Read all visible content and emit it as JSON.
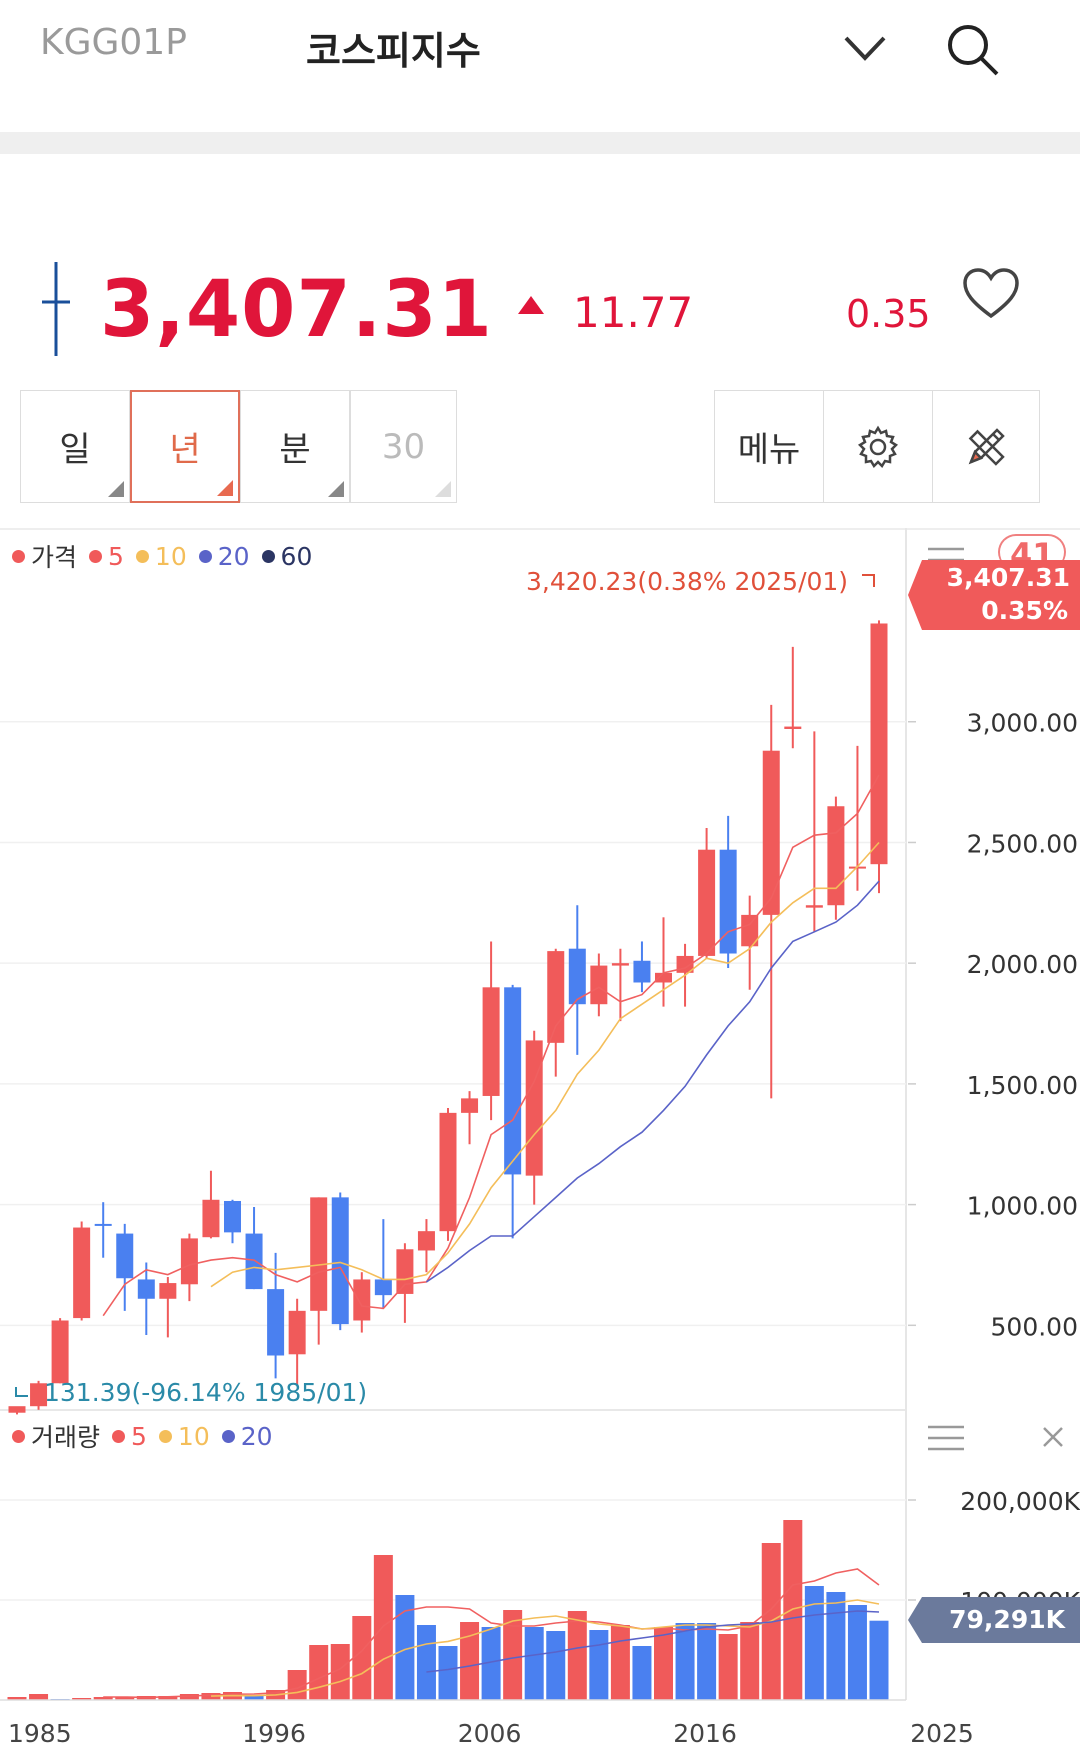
{
  "header": {
    "code": "KGG01P",
    "title": "코스피지수"
  },
  "quote": {
    "price": "3,407.31",
    "change": "11.77",
    "rate": "0.35",
    "up_color": "#e0153a"
  },
  "period_tabs": [
    {
      "label": "일"
    },
    {
      "label": "년"
    },
    {
      "label": "분"
    },
    {
      "label": "30"
    }
  ],
  "toolbar": {
    "menu_label": "메뉴"
  },
  "price_legend": [
    {
      "label": "가격",
      "color": "#f05a5a"
    },
    {
      "label": "5",
      "color": "#f05a5a"
    },
    {
      "label": "10",
      "color": "#f4be5a"
    },
    {
      "label": "20",
      "color": "#5a63c8"
    },
    {
      "label": "60",
      "color": "#2b3563"
    }
  ],
  "volume_legend": [
    {
      "label": "거래량",
      "color": "#f05a5a"
    },
    {
      "label": "5",
      "color": "#f05a5a"
    },
    {
      "label": "10",
      "color": "#f4be5a"
    },
    {
      "label": "20",
      "color": "#5a63c8"
    }
  ],
  "price_axis_badge": "41",
  "current_tag": {
    "price": "3,407.31",
    "rate": "0.35%"
  },
  "volume_tag": "79,291K",
  "high_label": "3,420.23(0.38% 2025/01)",
  "low_label": "131.39(-96.14% 1985/01)",
  "chart_data": [
    {
      "type": "candlestick",
      "title": "",
      "x_unit": "year",
      "x": [
        1985,
        1986,
        1987,
        1988,
        1989,
        1990,
        1991,
        1992,
        1993,
        1994,
        1995,
        1996,
        1997,
        1998,
        1999,
        2000,
        2001,
        2002,
        2003,
        2004,
        2005,
        2006,
        2007,
        2008,
        2009,
        2010,
        2011,
        2012,
        2013,
        2014,
        2015,
        2016,
        2017,
        2018,
        2019,
        2020,
        2021,
        2022,
        2023,
        2024,
        2025
      ],
      "open": [
        138,
        165,
        260,
        530,
        920,
        880,
        690,
        610,
        670,
        865,
        1015,
        880,
        650,
        380,
        560,
        1030,
        520,
        690,
        630,
        810,
        890,
        1380,
        1450,
        1900,
        1120,
        1670,
        2060,
        1830,
        1990,
        2010,
        1920,
        1960,
        2030,
        2470,
        2070,
        2200,
        2970,
        2230,
        2240,
        2400,
        2410
      ],
      "close": [
        165,
        260,
        520,
        905,
        915,
        695,
        610,
        675,
        860,
        1020,
        885,
        650,
        375,
        560,
        1030,
        505,
        690,
        625,
        815,
        890,
        1380,
        1440,
        1900,
        1125,
        1680,
        2050,
        1830,
        1990,
        2000,
        1920,
        1960,
        2030,
        2470,
        2040,
        2200,
        2880,
        2980,
        2240,
        2650,
        2400,
        3407
      ],
      "high": [
        140,
        270,
        530,
        930,
        1010,
        920,
        760,
        700,
        880,
        1140,
        1020,
        990,
        800,
        610,
        1030,
        1050,
        720,
        940,
        840,
        940,
        1400,
        1470,
        2090,
        1910,
        1720,
        2060,
        2240,
        2040,
        2060,
        2090,
        2190,
        2080,
        2560,
        2610,
        2280,
        3070,
        3310,
        2960,
        2690,
        2900,
        3420
      ],
      "low": [
        131,
        150,
        260,
        520,
        780,
        560,
        460,
        450,
        600,
        860,
        840,
        650,
        280,
        250,
        420,
        480,
        470,
        570,
        510,
        720,
        850,
        1250,
        1350,
        860,
        1000,
        1530,
        1620,
        1780,
        1760,
        1880,
        1820,
        1820,
        2020,
        1980,
        1890,
        1440,
        2890,
        2130,
        2180,
        2300,
        2290
      ],
      "up_color": "#f05a5a",
      "down_color": "#4a80f0",
      "moving_averages": [
        {
          "name": "5",
          "color": "#f06060",
          "values": [
            null,
            null,
            null,
            null,
            540,
            670,
            730,
            710,
            750,
            770,
            780,
            770,
            710,
            680,
            720,
            740,
            580,
            570,
            670,
            680,
            820,
            1030,
            1290,
            1350,
            1510,
            1740,
            1850,
            1900,
            1840,
            1870,
            1960,
            1980,
            2040,
            2130,
            2160,
            2270,
            2480,
            2530,
            2540,
            2620,
            2780
          ]
        },
        {
          "name": "10",
          "color": "#f4be5a",
          "values": [
            null,
            null,
            null,
            null,
            null,
            null,
            null,
            null,
            null,
            660,
            720,
            740,
            730,
            740,
            750,
            760,
            730,
            690,
            690,
            710,
            800,
            920,
            1070,
            1180,
            1290,
            1390,
            1540,
            1640,
            1770,
            1830,
            1890,
            1950,
            2020,
            2000,
            2060,
            2170,
            2250,
            2310,
            2310,
            2400,
            2500
          ]
        },
        {
          "name": "20",
          "color": "#5a63c8",
          "values": [
            null,
            null,
            null,
            null,
            null,
            null,
            null,
            null,
            null,
            null,
            null,
            null,
            null,
            null,
            null,
            null,
            null,
            null,
            null,
            680,
            740,
            810,
            870,
            870,
            950,
            1030,
            1110,
            1170,
            1240,
            1300,
            1390,
            1490,
            1620,
            1740,
            1840,
            1980,
            2090,
            2130,
            2170,
            2240,
            2340
          ]
        }
      ],
      "y_ticks": [
        500,
        1000,
        1500,
        2000,
        2500,
        3000
      ],
      "y_tick_labels": [
        "500.00",
        "1,000.00",
        "1,500.00",
        "2,000.00",
        "2,500.00",
        "3,000.00"
      ],
      "ylim": [
        0,
        3420.23
      ],
      "grid": true
    },
    {
      "type": "bar",
      "title": "",
      "x_unit": "year",
      "x": [
        1985,
        1986,
        1987,
        1988,
        1989,
        1990,
        1991,
        1992,
        1993,
        1994,
        1995,
        1996,
        1997,
        1998,
        1999,
        2000,
        2001,
        2002,
        2003,
        2004,
        2005,
        2006,
        2007,
        2008,
        2009,
        2010,
        2011,
        2012,
        2013,
        2014,
        2015,
        2016,
        2017,
        2018,
        2019,
        2020,
        2021,
        2022,
        2023,
        2024,
        2025
      ],
      "values_k": [
        3000,
        6000,
        1000,
        2000,
        3000,
        3000,
        4000,
        4000,
        6000,
        7000,
        8000,
        5000,
        10000,
        30000,
        55000,
        56000,
        84000,
        145000,
        105000,
        75000,
        54000,
        78000,
        73000,
        90000,
        73000,
        69000,
        89000,
        70000,
        75000,
        54000,
        73000,
        77000,
        77000,
        66000,
        78000,
        157000,
        180000,
        114000,
        108000,
        95000,
        79291
      ],
      "up_down": [
        "up",
        "up",
        "down",
        "up",
        "up",
        "up",
        "up",
        "up",
        "up",
        "up",
        "up",
        "down",
        "up",
        "up",
        "up",
        "up",
        "up",
        "up",
        "down",
        "down",
        "down",
        "up",
        "down",
        "up",
        "down",
        "down",
        "up",
        "down",
        "up",
        "down",
        "up",
        "down",
        "down",
        "up",
        "up",
        "up",
        "up",
        "down",
        "down",
        "down",
        "down"
      ],
      "moving_averages": [
        {
          "name": "5",
          "color": "#f06060",
          "values_k": [
            null,
            null,
            null,
            null,
            3000,
            3000,
            2600,
            3200,
            4000,
            4800,
            5800,
            6000,
            7200,
            11800,
            21600,
            31200,
            49000,
            74000,
            89000,
            93000,
            93000,
            91000,
            77000,
            74000,
            74000,
            77000,
            79000,
            78000,
            75000,
            71000,
            72000,
            70000,
            71000,
            70000,
            74000,
            91000,
            115000,
            119000,
            127000,
            131000,
            115000
          ]
        },
        {
          "name": "10",
          "color": "#f4be5a",
          "values_k": [
            null,
            null,
            null,
            null,
            null,
            null,
            null,
            null,
            null,
            3900,
            4400,
            4300,
            5100,
            7600,
            12700,
            18500,
            26400,
            40800,
            50500,
            56000,
            58600,
            64000,
            71000,
            79000,
            82000,
            84000,
            80000,
            76000,
            74000,
            71000,
            73000,
            75000,
            75000,
            74000,
            73000,
            79000,
            91000,
            96000,
            97000,
            100000,
            96000
          ]
        },
        {
          "name": "20",
          "color": "#5a63c8",
          "values_k": [
            null,
            null,
            null,
            null,
            null,
            null,
            null,
            null,
            null,
            null,
            null,
            null,
            null,
            null,
            null,
            null,
            null,
            null,
            null,
            28000,
            30500,
            34000,
            38000,
            42000,
            45000,
            48000,
            52000,
            55000,
            59000,
            62000,
            65000,
            69000,
            73000,
            75000,
            76000,
            78000,
            82000,
            85000,
            87000,
            89000,
            88000
          ]
        }
      ],
      "y_ticks_k": [
        100000,
        200000
      ],
      "y_tick_labels": [
        "100,000K",
        "200,000K"
      ],
      "ylim_k": [
        0,
        260000
      ],
      "x_tick_labels": [
        "1985",
        "1996",
        "2006",
        "2016",
        "2025"
      ]
    }
  ]
}
